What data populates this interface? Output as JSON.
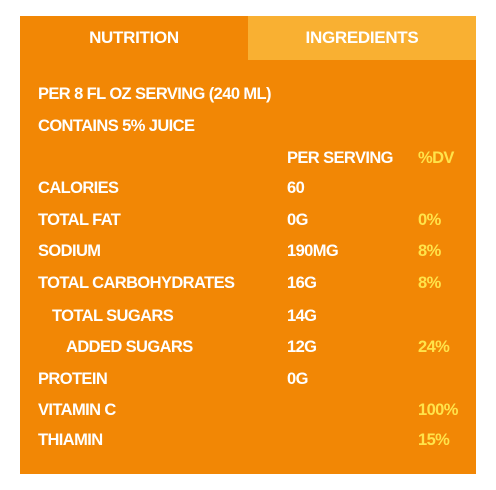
{
  "tabs": [
    "NUTRITION",
    "INGREDIENTS"
  ],
  "serving": "PER 8 FL OZ SERVING (240 ML)",
  "juice": "CONTAINS 5% JUICE",
  "header": {
    "serving": "PER SERVING",
    "dv": "%DV"
  },
  "rows": [
    {
      "label": "CALORIES",
      "serving": "60"
    },
    {
      "label": "TOTAL FAT",
      "serving": "0G",
      "dv": "0%"
    },
    {
      "label": "SODIUM",
      "serving": "190MG",
      "dv": "8%"
    },
    {
      "label": "TOTAL CARBOHYDRATES",
      "serving": "16G",
      "dv": "8%"
    },
    {
      "label": "TOTAL SUGARS",
      "serving": "14G"
    },
    {
      "label": "ADDED SUGARS",
      "serving": "12G",
      "dv": "24%"
    },
    {
      "label": "PROTEIN",
      "serving": "0G"
    },
    {
      "label": "VITAMIN C",
      "dv": "100%"
    },
    {
      "label": "THIAMIN",
      "dv": "15%"
    }
  ]
}
